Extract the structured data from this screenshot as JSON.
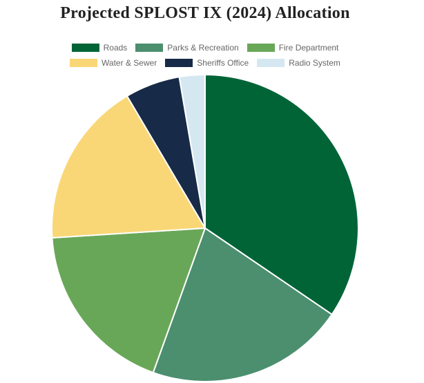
{
  "chart_data": {
    "type": "pie",
    "title": "Projected SPLOST IX (2024) Allocation",
    "legend": "top",
    "categories": [
      "Roads",
      "Parks & Recreation",
      "Fire Department",
      "Water & Sewer",
      "Sheriffs Office",
      "Radio System"
    ],
    "values": [
      34.5,
      21.0,
      18.5,
      17.5,
      5.8,
      2.7
    ],
    "colors": [
      "#006437",
      "#4b8f6f",
      "#69a758",
      "#fad776",
      "#172a47",
      "#d5e8f1"
    ]
  }
}
